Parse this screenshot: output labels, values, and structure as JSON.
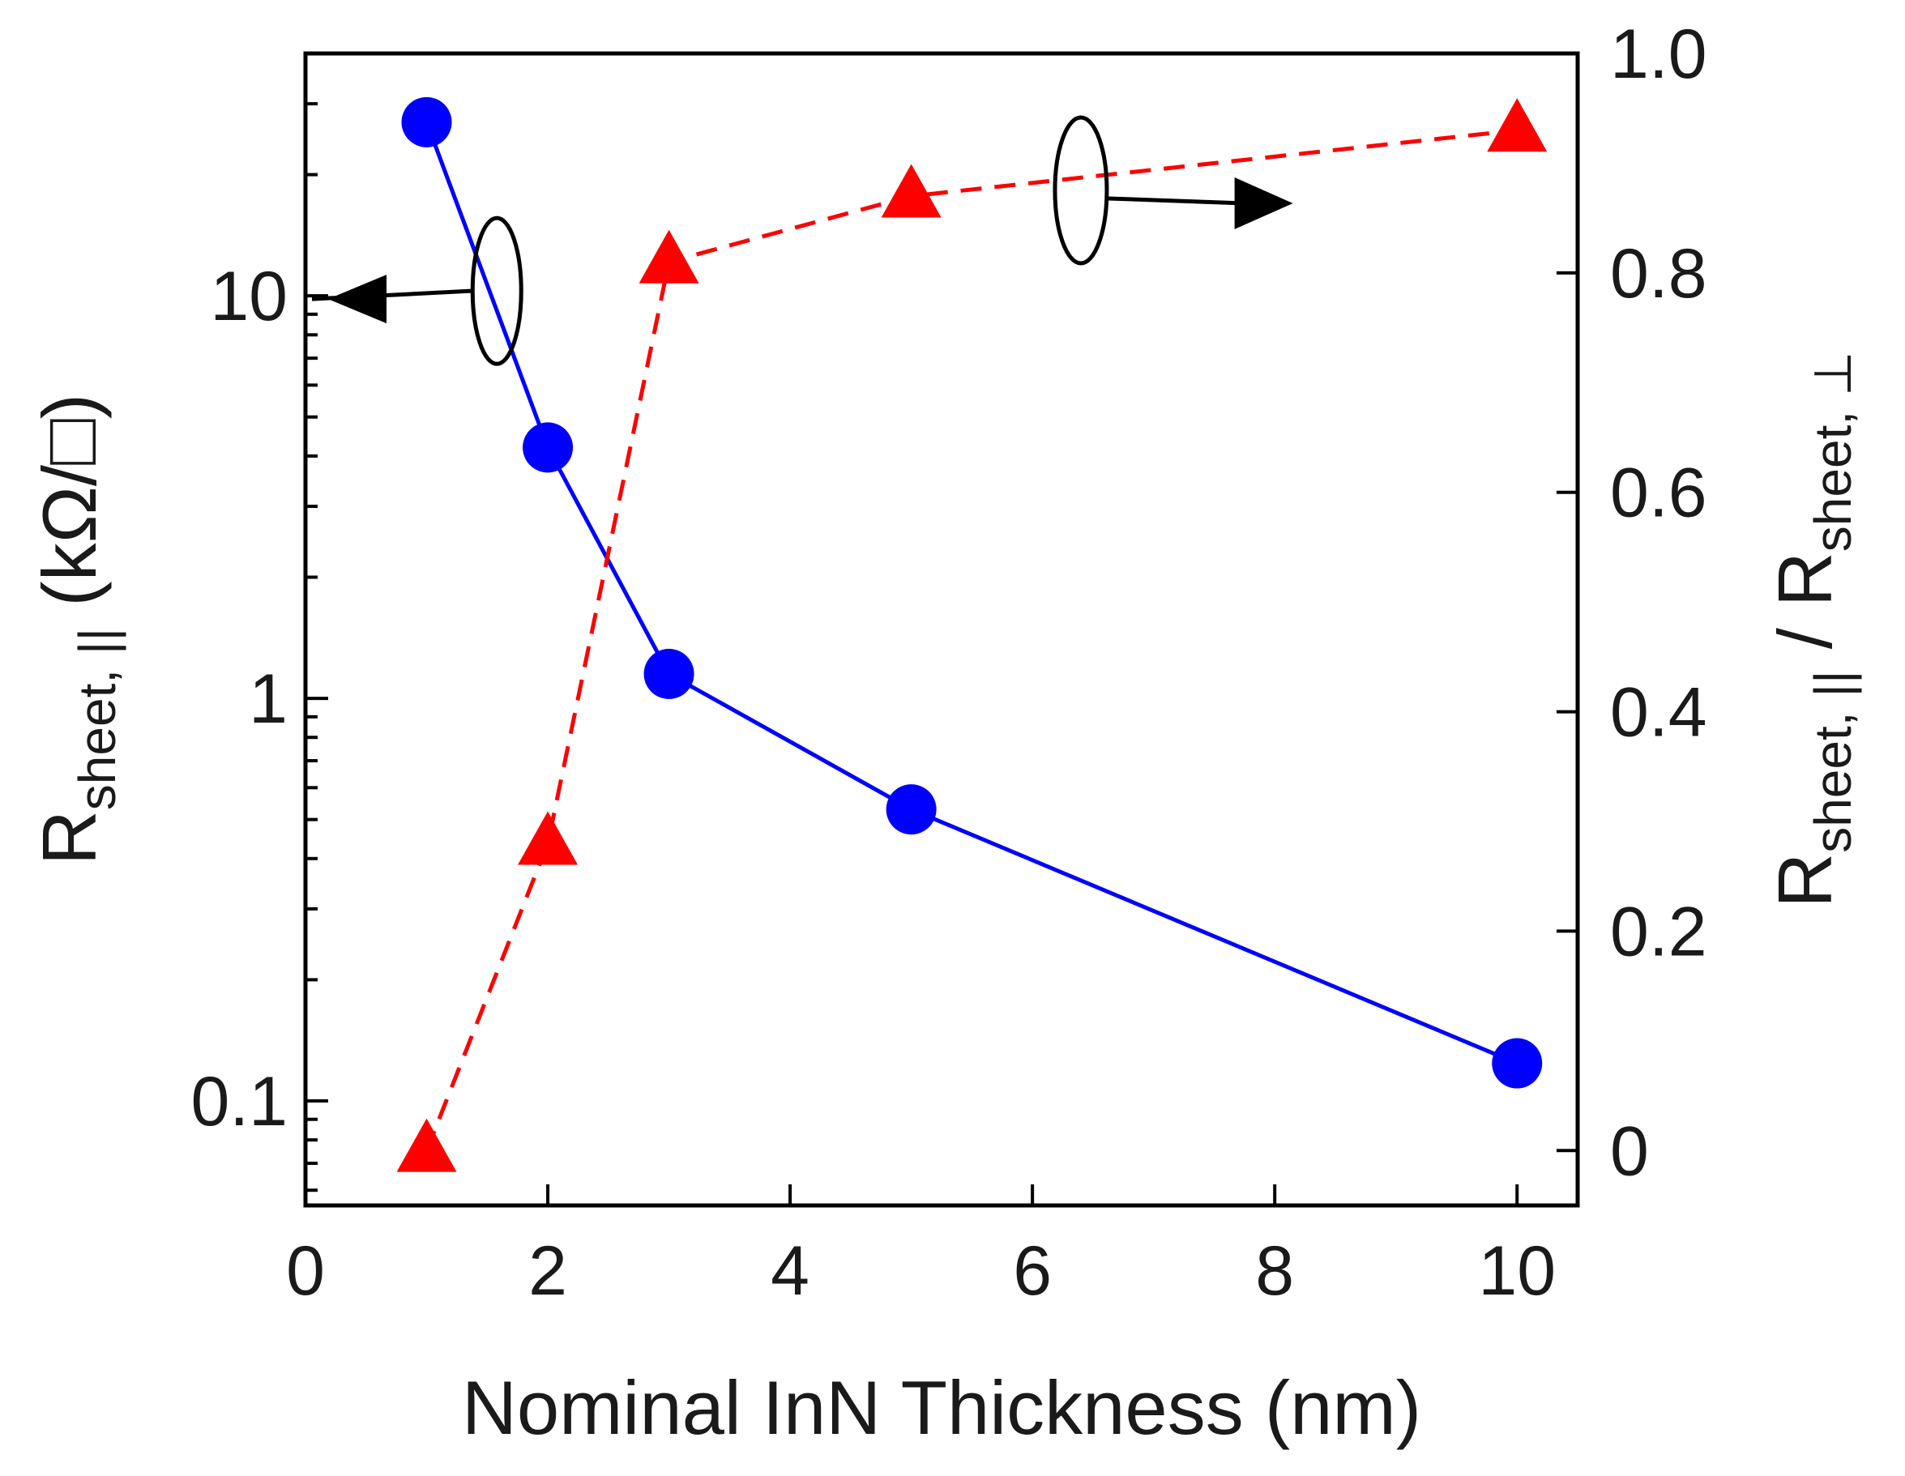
{
  "chart_data": {
    "type": "line",
    "xlabel": "Nominal InN Thickness (nm)",
    "xlim": [
      0,
      10.5
    ],
    "x_ticks": [
      0,
      2,
      4,
      6,
      8,
      10
    ],
    "y_left": {
      "label_main": "R",
      "label_sub": "sheet, ||",
      "label_unit": " (kΩ/□)",
      "scale": "log",
      "lim": [
        0.055,
        40
      ],
      "major_ticks": [
        {
          "value": 0.1,
          "label": "0.1"
        },
        {
          "value": 1,
          "label": "1"
        },
        {
          "value": 10,
          "label": "10"
        }
      ]
    },
    "y_right": {
      "label_main_1": "R",
      "label_sub_1": "sheet, ||",
      "label_sep": " / ",
      "label_main_2": "R",
      "label_sub_2": "sheet, ⊥",
      "scale": "linear",
      "lim": [
        -0.05,
        1.0
      ],
      "ticks": [
        {
          "value": 0,
          "label": "0"
        },
        {
          "value": 0.2,
          "label": "0.2"
        },
        {
          "value": 0.4,
          "label": "0.4"
        },
        {
          "value": 0.6,
          "label": "0.6"
        },
        {
          "value": 0.8,
          "label": "0.8"
        },
        {
          "value": 1.0,
          "label": "1.0"
        }
      ]
    },
    "series": [
      {
        "axis": "left",
        "marker": "circle",
        "line": "solid",
        "color": "#0000ff",
        "points": [
          {
            "x": 1,
            "y": 27
          },
          {
            "x": 2,
            "y": 4.2
          },
          {
            "x": 3,
            "y": 1.15
          },
          {
            "x": 5,
            "y": 0.53
          },
          {
            "x": 10,
            "y": 0.124
          }
        ]
      },
      {
        "axis": "right",
        "marker": "triangle",
        "line": "dashed",
        "color": "#ff0000",
        "points": [
          {
            "x": 1,
            "y": 0.0
          },
          {
            "x": 2,
            "y": 0.28
          },
          {
            "x": 3,
            "y": 0.81
          },
          {
            "x": 5,
            "y": 0.87
          },
          {
            "x": 10,
            "y": 0.93
          }
        ]
      }
    ],
    "annotations": [
      {
        "type": "ellipse-arrow",
        "points_to": "left-axis",
        "series": 0
      },
      {
        "type": "ellipse-arrow",
        "points_to": "right-axis",
        "series": 1
      }
    ],
    "grid": false,
    "legend": "none"
  }
}
